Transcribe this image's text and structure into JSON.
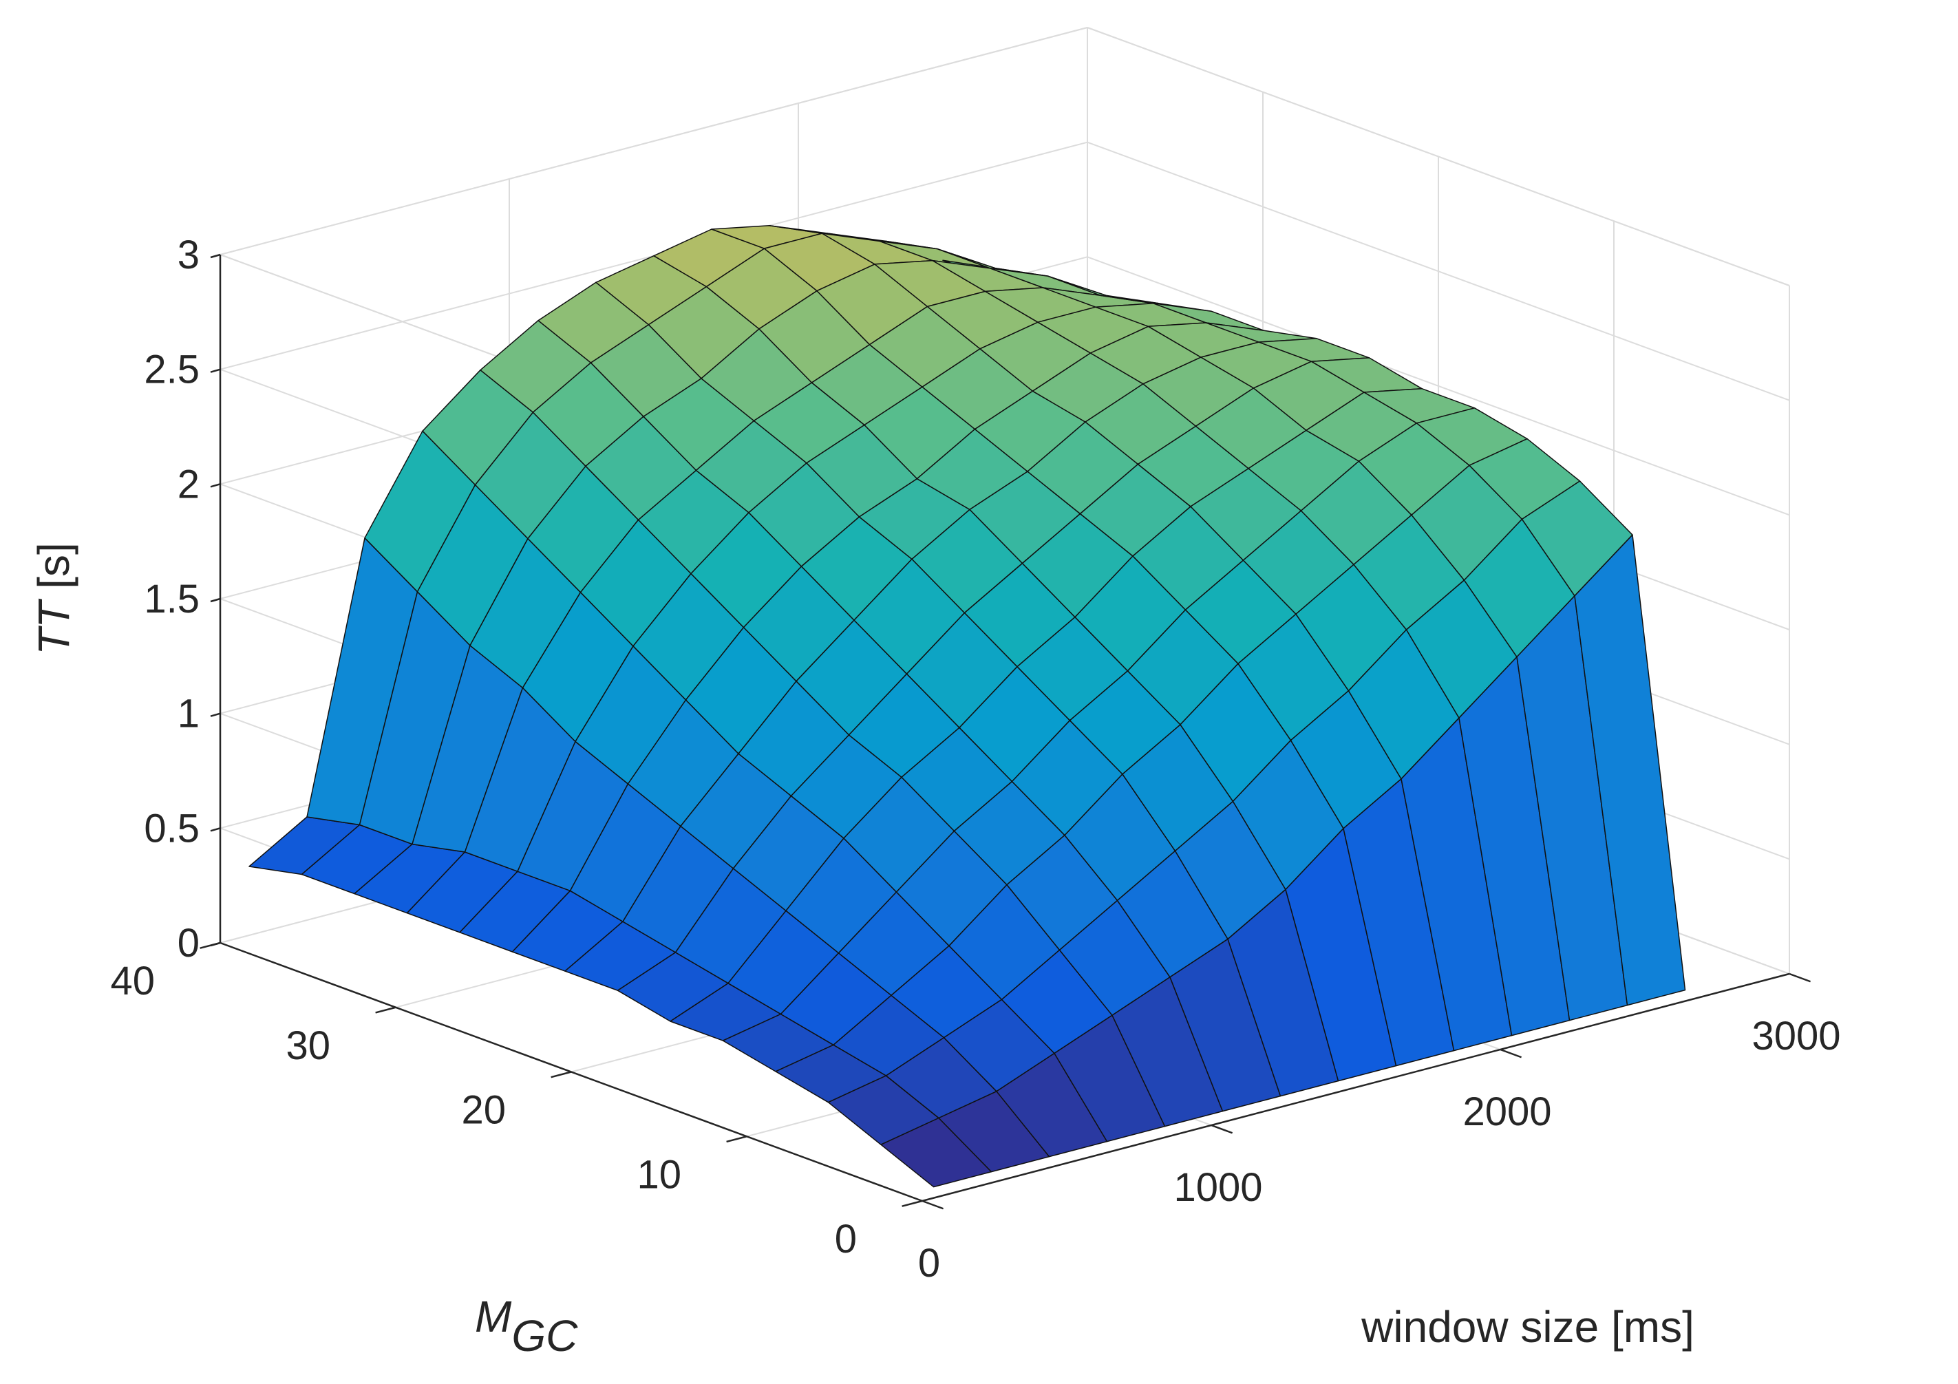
{
  "chart_data": {
    "type": "surface",
    "title": "",
    "xlabel": "window size [ms]",
    "ylabel_main": "M",
    "ylabel_sub": "GC",
    "zlabel_main": "TT",
    "zlabel_unit": " [s]",
    "xlim": [
      0,
      3000
    ],
    "ylim": [
      0,
      40
    ],
    "zlim": [
      0,
      3
    ],
    "x_ticks": [
      "0",
      "1000",
      "2000",
      "3000"
    ],
    "x_tick_values": [
      0,
      1000,
      2000,
      3000
    ],
    "y_ticks": [
      "0",
      "10",
      "20",
      "30",
      "40"
    ],
    "y_tick_values": [
      0,
      10,
      20,
      30,
      40
    ],
    "z_ticks": [
      "0",
      "0.5",
      "1",
      "1.5",
      "2",
      "2.5",
      "3"
    ],
    "z_tick_values": [
      0,
      0.5,
      1,
      1.5,
      2,
      2.5,
      3
    ],
    "grid": true,
    "colormap": "parula",
    "surface_x": [
      100,
      300,
      500,
      700,
      900,
      1100,
      1300,
      1500,
      1700,
      1900,
      2100,
      2300,
      2500,
      2700
    ],
    "surface_y": [
      1,
      4,
      7,
      10,
      13,
      16,
      19,
      22,
      25,
      28,
      31,
      34,
      37,
      40
    ],
    "surface_z": [
      [
        0.0,
        0.0,
        0.0,
        0.0,
        0.0,
        0.0,
        0.0,
        0.0,
        0.0,
        0.0,
        0.0,
        0.0,
        0.0,
        0.0
      ],
      [
        0.1,
        0.15,
        0.2,
        0.3,
        0.4,
        0.5,
        0.6,
        0.75,
        0.95,
        1.1,
        1.3,
        1.5,
        1.7,
        1.9
      ],
      [
        0.2,
        0.25,
        0.35,
        0.45,
        0.6,
        0.75,
        0.9,
        1.05,
        1.25,
        1.4,
        1.6,
        1.75,
        1.95,
        2.05
      ],
      [
        0.25,
        0.3,
        0.45,
        0.6,
        0.8,
        0.95,
        1.15,
        1.3,
        1.5,
        1.65,
        1.8,
        1.95,
        2.1,
        2.15
      ],
      [
        0.3,
        0.35,
        0.55,
        0.75,
        0.95,
        1.1,
        1.3,
        1.45,
        1.65,
        1.8,
        1.95,
        2.1,
        2.2,
        2.2
      ],
      [
        0.3,
        0.4,
        0.65,
        0.9,
        1.1,
        1.25,
        1.45,
        1.6,
        1.8,
        1.95,
        2.05,
        2.15,
        2.25,
        2.2
      ],
      [
        0.35,
        0.45,
        0.75,
        1.0,
        1.2,
        1.4,
        1.6,
        1.75,
        1.9,
        2.05,
        2.15,
        2.25,
        2.3,
        2.25
      ],
      [
        0.35,
        0.5,
        0.85,
        1.1,
        1.35,
        1.55,
        1.75,
        1.9,
        2.0,
        2.15,
        2.25,
        2.3,
        2.3,
        2.25
      ],
      [
        0.35,
        0.55,
        0.95,
        1.25,
        1.5,
        1.7,
        1.85,
        1.95,
        2.1,
        2.2,
        2.3,
        2.35,
        2.3,
        2.2
      ],
      [
        0.35,
        0.55,
        1.05,
        1.4,
        1.65,
        1.85,
        2.0,
        2.1,
        2.2,
        2.3,
        2.35,
        2.35,
        2.3,
        2.2
      ],
      [
        0.35,
        0.55,
        1.2,
        1.55,
        1.8,
        1.95,
        2.1,
        2.2,
        2.3,
        2.4,
        2.4,
        2.35,
        2.25,
        2.15
      ],
      [
        0.35,
        0.5,
        1.3,
        1.7,
        1.95,
        2.1,
        2.2,
        2.35,
        2.45,
        2.5,
        2.45,
        2.35,
        2.25,
        2.1
      ],
      [
        0.35,
        0.5,
        1.45,
        1.85,
        2.1,
        2.25,
        2.35,
        2.45,
        2.55,
        2.55,
        2.45,
        2.35,
        2.2,
        2.05
      ],
      [
        0.3,
        0.45,
        1.6,
        2.0,
        2.2,
        2.35,
        2.45,
        2.5,
        2.55,
        2.5,
        2.4,
        2.3,
        2.15,
        2.0
      ]
    ]
  }
}
